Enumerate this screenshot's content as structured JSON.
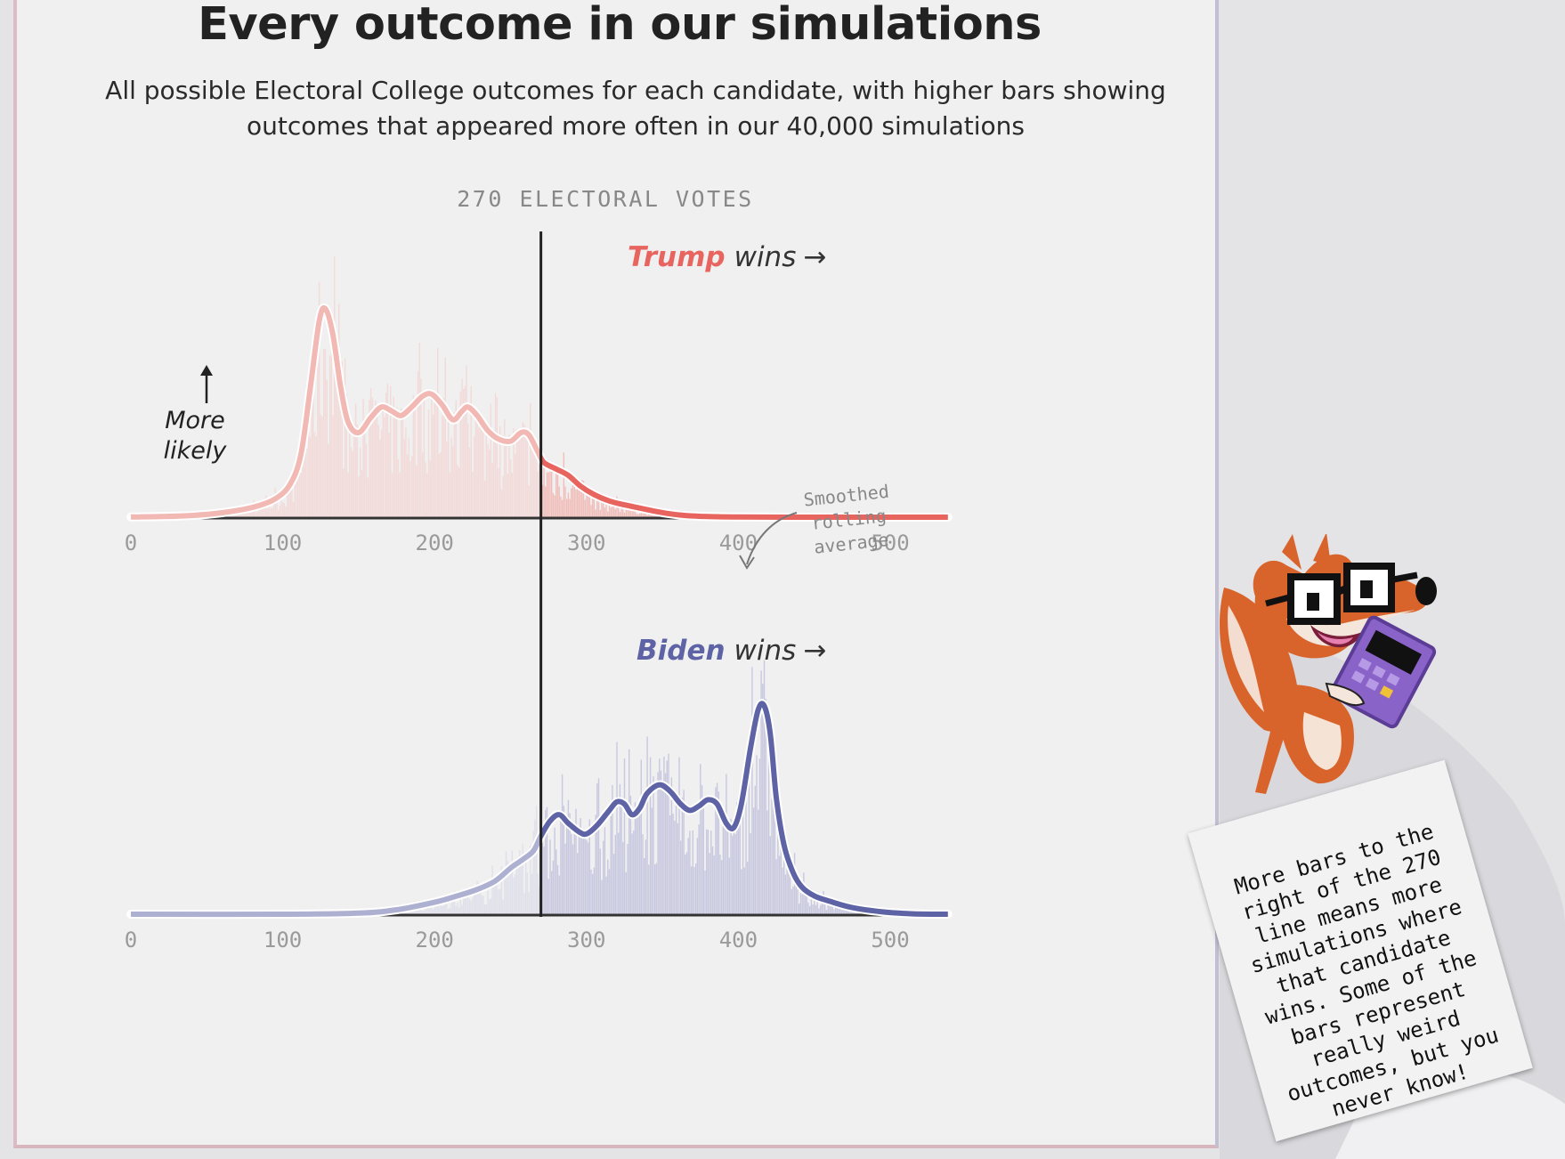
{
  "title": "Every outcome in our simulations",
  "subtitle": "All possible Electoral College outcomes for each candidate, with higher bars showing outcomes that appeared more often in our 40,000 simulations",
  "threshold_label": "270 ELECTORAL VOTES",
  "more_likely_label": [
    "More",
    "likely"
  ],
  "smoothed_label": [
    "Smoothed",
    "rolling",
    "average"
  ],
  "note_text": "More bars to the\nright of the 270\nline means more\nsimulations where\nthat candidate\nwins. Some of the\nbars represent\nreally weird\noutcomes, but you\nnever know!",
  "mascot_icon": "fox-with-glasses-and-calculator",
  "colors": {
    "trump": "#e8645e",
    "trump_light": "#f1b8b4",
    "trump_bar": "#f4c6c2",
    "biden": "#5e63a6",
    "biden_light": "#aeb0d2",
    "biden_bar": "#c3c4de",
    "axis": "#333333"
  },
  "chart_data": [
    {
      "type": "bar",
      "candidate": "Trump",
      "label_name": "Trump",
      "label_wins": "wins",
      "arrow": "→",
      "xlabel": "",
      "ylabel": "",
      "xlim": [
        0,
        538
      ],
      "threshold": 270,
      "xticks": [
        "0",
        "100",
        "200",
        "300",
        "400",
        "500"
      ],
      "smoothed": [
        [
          0,
          0.005
        ],
        [
          20,
          0.007
        ],
        [
          40,
          0.012
        ],
        [
          60,
          0.025
        ],
        [
          80,
          0.05
        ],
        [
          95,
          0.09
        ],
        [
          105,
          0.16
        ],
        [
          112,
          0.3
        ],
        [
          118,
          0.6
        ],
        [
          124,
          0.92
        ],
        [
          128,
          0.98
        ],
        [
          133,
          0.86
        ],
        [
          138,
          0.62
        ],
        [
          143,
          0.45
        ],
        [
          150,
          0.4
        ],
        [
          158,
          0.47
        ],
        [
          165,
          0.52
        ],
        [
          172,
          0.5
        ],
        [
          178,
          0.48
        ],
        [
          185,
          0.52
        ],
        [
          192,
          0.57
        ],
        [
          198,
          0.58
        ],
        [
          205,
          0.53
        ],
        [
          212,
          0.46
        ],
        [
          218,
          0.5
        ],
        [
          222,
          0.52
        ],
        [
          228,
          0.48
        ],
        [
          235,
          0.41
        ],
        [
          242,
          0.37
        ],
        [
          250,
          0.36
        ],
        [
          257,
          0.4
        ],
        [
          262,
          0.39
        ],
        [
          268,
          0.31
        ],
        [
          272,
          0.26
        ],
        [
          280,
          0.23
        ],
        [
          288,
          0.2
        ],
        [
          296,
          0.15
        ],
        [
          305,
          0.11
        ],
        [
          315,
          0.08
        ],
        [
          325,
          0.062
        ],
        [
          335,
          0.047
        ],
        [
          345,
          0.032
        ],
        [
          355,
          0.02
        ],
        [
          365,
          0.012
        ],
        [
          380,
          0.007
        ],
        [
          400,
          0.005
        ],
        [
          450,
          0.004
        ],
        [
          538,
          0.004
        ]
      ],
      "peak_bar_height": 1.6
    },
    {
      "type": "bar",
      "candidate": "Biden",
      "label_name": "Biden",
      "label_wins": "wins",
      "arrow": "→",
      "xlabel": "",
      "ylabel": "",
      "xlim": [
        0,
        538
      ],
      "threshold": 270,
      "xticks": [
        "0",
        "100",
        "200",
        "300",
        "400",
        "500"
      ],
      "smoothed": [
        [
          0,
          0.004
        ],
        [
          100,
          0.004
        ],
        [
          150,
          0.009
        ],
        [
          175,
          0.025
        ],
        [
          200,
          0.06
        ],
        [
          215,
          0.09
        ],
        [
          228,
          0.12
        ],
        [
          240,
          0.16
        ],
        [
          250,
          0.22
        ],
        [
          258,
          0.26
        ],
        [
          265,
          0.3
        ],
        [
          270,
          0.37
        ],
        [
          276,
          0.44
        ],
        [
          282,
          0.47
        ],
        [
          288,
          0.43
        ],
        [
          295,
          0.39
        ],
        [
          300,
          0.38
        ],
        [
          307,
          0.42
        ],
        [
          315,
          0.49
        ],
        [
          320,
          0.53
        ],
        [
          325,
          0.52
        ],
        [
          330,
          0.47
        ],
        [
          335,
          0.5
        ],
        [
          340,
          0.57
        ],
        [
          348,
          0.61
        ],
        [
          355,
          0.58
        ],
        [
          362,
          0.52
        ],
        [
          368,
          0.49
        ],
        [
          374,
          0.51
        ],
        [
          380,
          0.54
        ],
        [
          386,
          0.52
        ],
        [
          392,
          0.43
        ],
        [
          397,
          0.41
        ],
        [
          402,
          0.52
        ],
        [
          408,
          0.78
        ],
        [
          413,
          0.96
        ],
        [
          417,
          0.98
        ],
        [
          421,
          0.85
        ],
        [
          425,
          0.55
        ],
        [
          430,
          0.33
        ],
        [
          436,
          0.2
        ],
        [
          442,
          0.13
        ],
        [
          450,
          0.09
        ],
        [
          460,
          0.065
        ],
        [
          475,
          0.035
        ],
        [
          495,
          0.015
        ],
        [
          515,
          0.006
        ],
        [
          538,
          0.004
        ]
      ],
      "peak_bar_height": 1.35
    }
  ]
}
